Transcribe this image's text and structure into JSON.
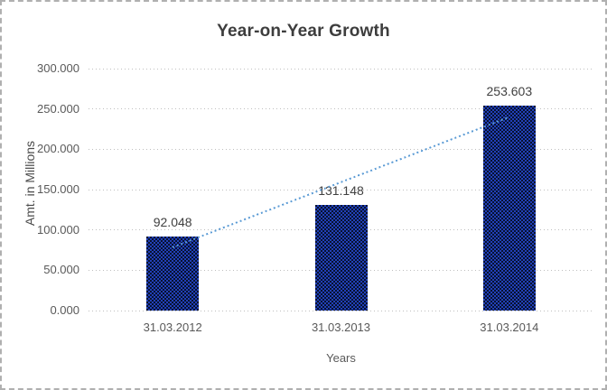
{
  "chart_data": {
    "type": "bar",
    "title": "Year-on-Year Growth",
    "categories": [
      "31.03.2012",
      "31.03.2013",
      "31.03.2014"
    ],
    "values": [
      92.048,
      131.148,
      253.603
    ],
    "value_labels": [
      "92.048",
      "131.148",
      "253.603"
    ],
    "xlabel": "Years",
    "ylabel": "Amt. in Millions",
    "ylim": [
      0,
      300
    ],
    "yticks": [
      0,
      50,
      100,
      150,
      200,
      250,
      300
    ],
    "ytick_labels": [
      "0.000",
      "50.000",
      "100.000",
      "150.000",
      "200.000",
      "250.000",
      "300.000"
    ],
    "grid": "horizontal-dotted",
    "legend": false,
    "trendline": {
      "type": "linear",
      "style": "dotted"
    }
  },
  "colors": {
    "bar_pattern_light": "#2140b8",
    "bar_pattern_dark": "#081230",
    "trendline": "#5b9bd5",
    "gridline": "#bfbfbf",
    "title_text": "#3d3d3d",
    "data_label_text": "#404040",
    "axis_text": "#595959",
    "frame_border": "#b0b0b0"
  }
}
